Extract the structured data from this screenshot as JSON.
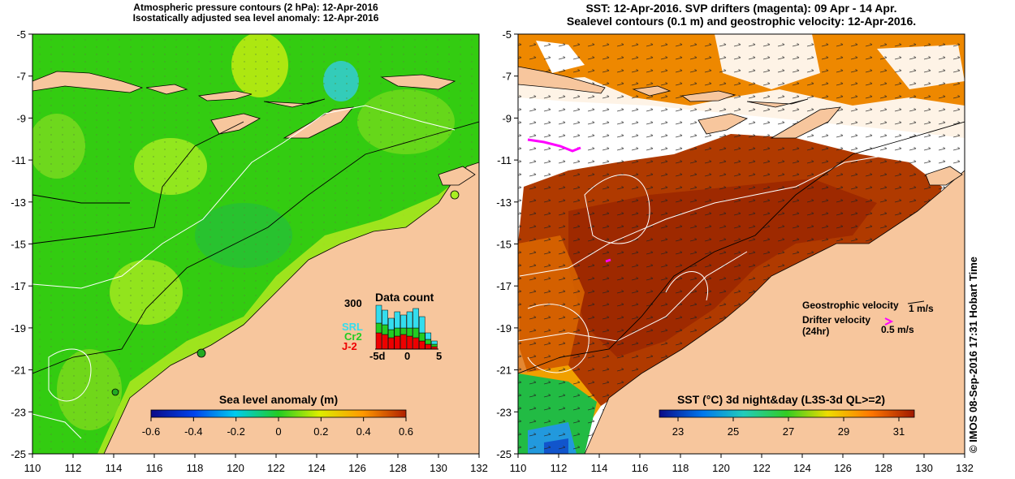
{
  "left_panel": {
    "title_line1": "Atmospheric pressure contours (2 hPa): 12-Apr-2016",
    "title_line2": "Isostatically adjusted sea level anomaly: 12-Apr-2016",
    "colorbar": {
      "title": "Sea level anomaly (m)",
      "ticks": [
        "-0.6",
        "-0.4",
        "-0.2",
        "0",
        "0.2",
        "0.4",
        "0.6"
      ]
    },
    "data_count": {
      "title": "Data count",
      "max_label": "300",
      "satellites": [
        "SRL",
        "Cr2",
        "J-2"
      ],
      "satellite_colors": [
        "#33ddee",
        "#22cc22",
        "#ee0000"
      ],
      "x_labels": [
        "-5d",
        "0",
        "5"
      ]
    }
  },
  "right_panel": {
    "title_line1": "SST: 12-Apr-2016. SVP drifters (magenta): 09 Apr - 14 Apr.",
    "title_line2": "Sealevel contours (0.1 m) and geostrophic velocity: 12-Apr-2016.",
    "colorbar": {
      "title": "SST (°C) 3d night&day (L3S-3d QL>=2)",
      "ticks": [
        "23",
        "25",
        "27",
        "29",
        "31"
      ]
    },
    "legend": {
      "geo_label": "Geostrophic velocity",
      "geo_value": "1 m/s",
      "drifter_label": "Drifter velocity",
      "drifter_sub": "(24hr)",
      "drifter_value": "0.5 m/s"
    }
  },
  "axes": {
    "y_ticks": [
      "-5",
      "-7",
      "-9",
      "-11",
      "-13",
      "-15",
      "-17",
      "-19",
      "-21",
      "-23",
      "-25"
    ],
    "x_ticks": [
      "110",
      "112",
      "114",
      "116",
      "118",
      "120",
      "122",
      "124",
      "126",
      "128",
      "130",
      "132"
    ]
  },
  "credit": "© IMOS 08-Sep-2016 17:31 Hobart Time",
  "colors": {
    "land": "#f7c69d",
    "sla_green": "#44cc22",
    "sst_red": "#b03a00",
    "drifter": "#ff00ff"
  }
}
